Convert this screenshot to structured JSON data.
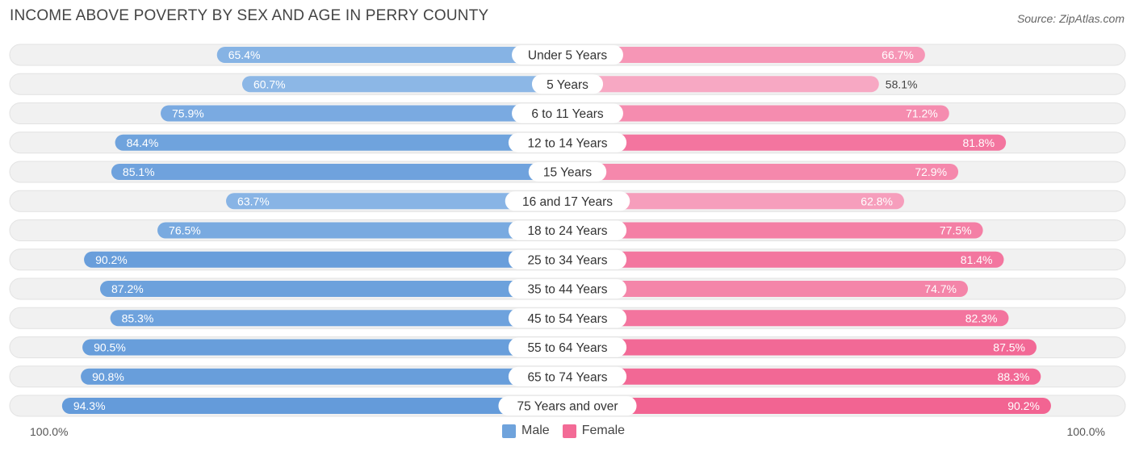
{
  "title": "INCOME ABOVE POVERTY BY SEX AND AGE IN PERRY COUNTY",
  "source": "Source: ZipAtlas.com",
  "axis": {
    "left_label": "100.0%",
    "right_label": "100.0%"
  },
  "legend": {
    "male_label": "Male",
    "female_label": "Female",
    "male_color": "#6fa3dc",
    "female_color": "#f36b96"
  },
  "chart_data": {
    "type": "bar",
    "orientation": "horizontal-diverging",
    "title": "INCOME ABOVE POVERTY BY SEX AND AGE IN PERRY COUNTY",
    "xlim": [
      0,
      100
    ],
    "categories": [
      "Under 5 Years",
      "5 Years",
      "6 to 11 Years",
      "12 to 14 Years",
      "15 Years",
      "16 and 17 Years",
      "18 to 24 Years",
      "25 to 34 Years",
      "35 to 44 Years",
      "45 to 54 Years",
      "55 to 64 Years",
      "65 to 74 Years",
      "75 Years and over"
    ],
    "series": [
      {
        "name": "Male",
        "values": [
          65.4,
          60.7,
          75.9,
          84.4,
          85.1,
          63.7,
          76.5,
          90.2,
          87.2,
          85.3,
          90.5,
          90.8,
          94.3
        ]
      },
      {
        "name": "Female",
        "values": [
          66.7,
          58.1,
          71.2,
          81.8,
          72.9,
          62.8,
          77.5,
          81.4,
          74.7,
          82.3,
          87.5,
          88.3,
          90.2
        ]
      }
    ],
    "value_labels": {
      "Male": [
        "65.4%",
        "60.7%",
        "75.9%",
        "84.4%",
        "85.1%",
        "63.7%",
        "76.5%",
        "90.2%",
        "87.2%",
        "85.3%",
        "90.5%",
        "90.8%",
        "94.3%"
      ],
      "Female": [
        "66.7%",
        "58.1%",
        "71.2%",
        "81.8%",
        "72.9%",
        "62.8%",
        "77.5%",
        "81.4%",
        "74.7%",
        "82.3%",
        "87.5%",
        "88.3%",
        "90.2%"
      ]
    }
  }
}
